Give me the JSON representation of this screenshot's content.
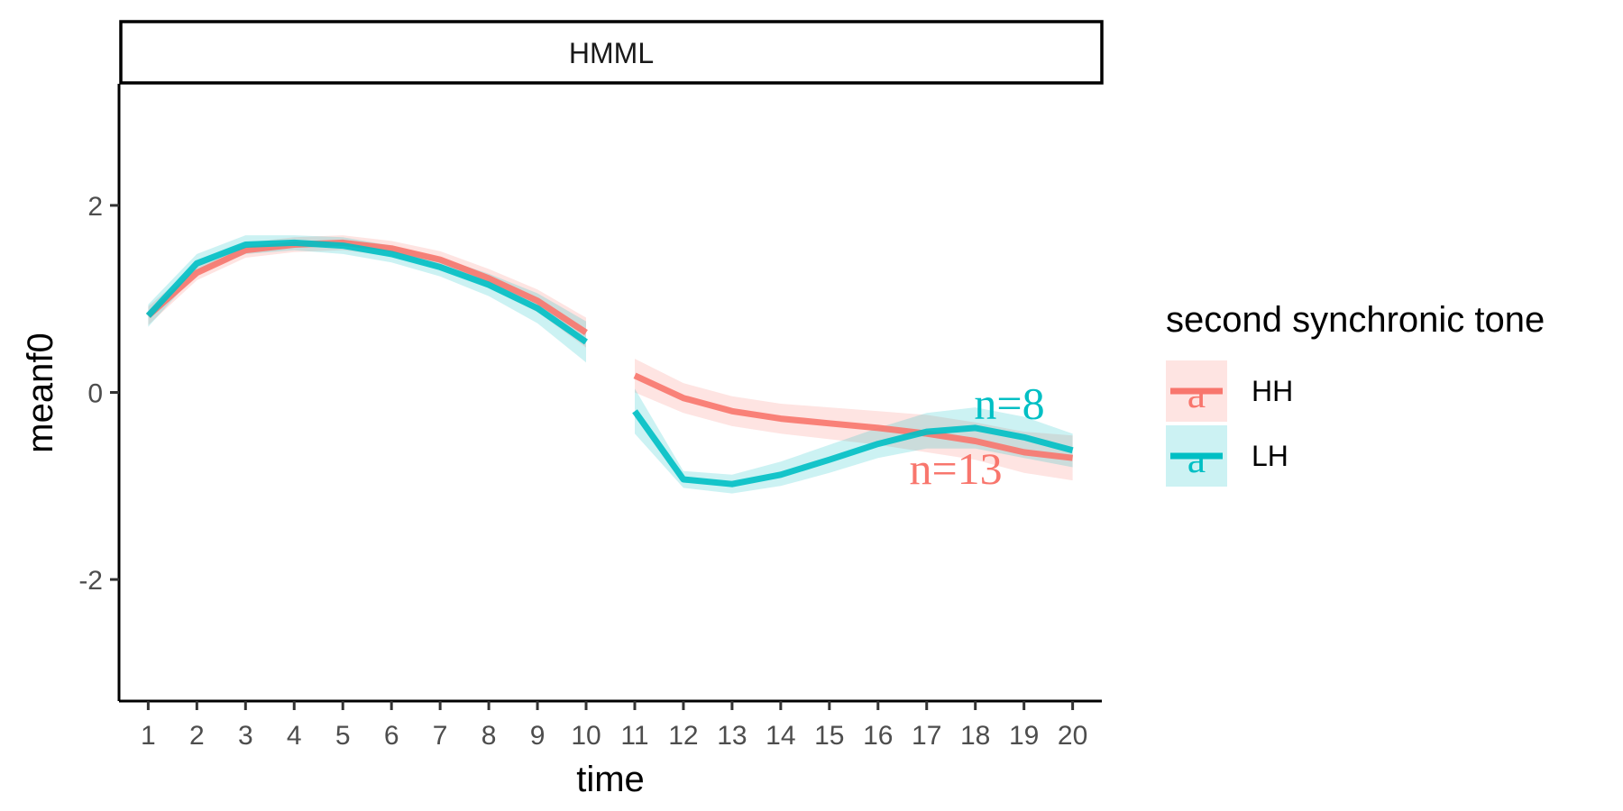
{
  "chart_data": {
    "type": "line",
    "facet": "HMML",
    "xlabel": "time",
    "ylabel": "meanf0",
    "xlim": [
      0.4,
      20.6
    ],
    "ylim": [
      -3.3,
      3.3
    ],
    "x_ticks": [
      1,
      2,
      3,
      4,
      5,
      6,
      7,
      8,
      9,
      10,
      11,
      12,
      13,
      14,
      15,
      16,
      17,
      18,
      19,
      20
    ],
    "y_ticks": [
      -2,
      0,
      2
    ],
    "y_tick_labels": [
      "-2",
      "0",
      "2"
    ],
    "grid": false,
    "legend": {
      "title": "second synchronic tone",
      "position": "right",
      "glyph": "a"
    },
    "series": [
      {
        "name": "HH",
        "color": "#F8766D",
        "segments": [
          {
            "x": [
              1,
              2,
              3,
              4,
              5,
              6,
              7,
              8,
              9,
              10
            ],
            "y": [
              0.82,
              1.28,
              1.52,
              1.58,
              1.6,
              1.54,
              1.42,
              1.22,
              0.98,
              0.64
            ],
            "lower": [
              0.72,
              1.2,
              1.44,
              1.5,
              1.52,
              1.46,
              1.33,
              1.12,
              0.86,
              0.48
            ],
            "upper": [
              0.92,
              1.36,
              1.6,
              1.66,
              1.68,
              1.62,
              1.51,
              1.32,
              1.1,
              0.8
            ]
          },
          {
            "x": [
              11,
              12,
              13,
              14,
              15,
              16,
              17,
              18,
              19,
              20
            ],
            "y": [
              0.18,
              -0.06,
              -0.2,
              -0.28,
              -0.33,
              -0.38,
              -0.44,
              -0.52,
              -0.64,
              -0.7
            ],
            "lower": [
              0.0,
              -0.22,
              -0.36,
              -0.44,
              -0.5,
              -0.56,
              -0.64,
              -0.72,
              -0.86,
              -0.94
            ],
            "upper": [
              0.36,
              0.1,
              -0.04,
              -0.12,
              -0.16,
              -0.2,
              -0.24,
              -0.32,
              -0.42,
              -0.46
            ]
          }
        ],
        "n_label": "n=13",
        "n_label_pos": [
          17.6,
          -0.98
        ]
      },
      {
        "name": "LH",
        "color": "#00BFC4",
        "segments": [
          {
            "x": [
              1,
              2,
              3,
              4,
              5,
              6,
              7,
              8,
              9,
              10
            ],
            "y": [
              0.82,
              1.38,
              1.58,
              1.6,
              1.57,
              1.48,
              1.34,
              1.15,
              0.9,
              0.54
            ],
            "lower": [
              0.7,
              1.28,
              1.48,
              1.52,
              1.48,
              1.39,
              1.24,
              1.03,
              0.74,
              0.32
            ],
            "upper": [
              0.94,
              1.48,
              1.68,
              1.68,
              1.66,
              1.57,
              1.44,
              1.27,
              1.06,
              0.76
            ]
          },
          {
            "x": [
              11,
              12,
              13,
              14,
              15,
              16,
              17,
              18,
              19,
              20
            ],
            "y": [
              -0.2,
              -0.93,
              -0.98,
              -0.88,
              -0.72,
              -0.55,
              -0.42,
              -0.38,
              -0.48,
              -0.62
            ],
            "lower": [
              -0.44,
              -1.02,
              -1.08,
              -1.0,
              -0.86,
              -0.7,
              -0.6,
              -0.6,
              -0.7,
              -0.8
            ],
            "upper": [
              0.04,
              -0.84,
              -0.88,
              -0.74,
              -0.56,
              -0.38,
              -0.22,
              -0.16,
              -0.26,
              -0.44
            ]
          }
        ],
        "n_label": "n=8",
        "n_label_pos": [
          18.7,
          -0.28
        ]
      }
    ]
  }
}
